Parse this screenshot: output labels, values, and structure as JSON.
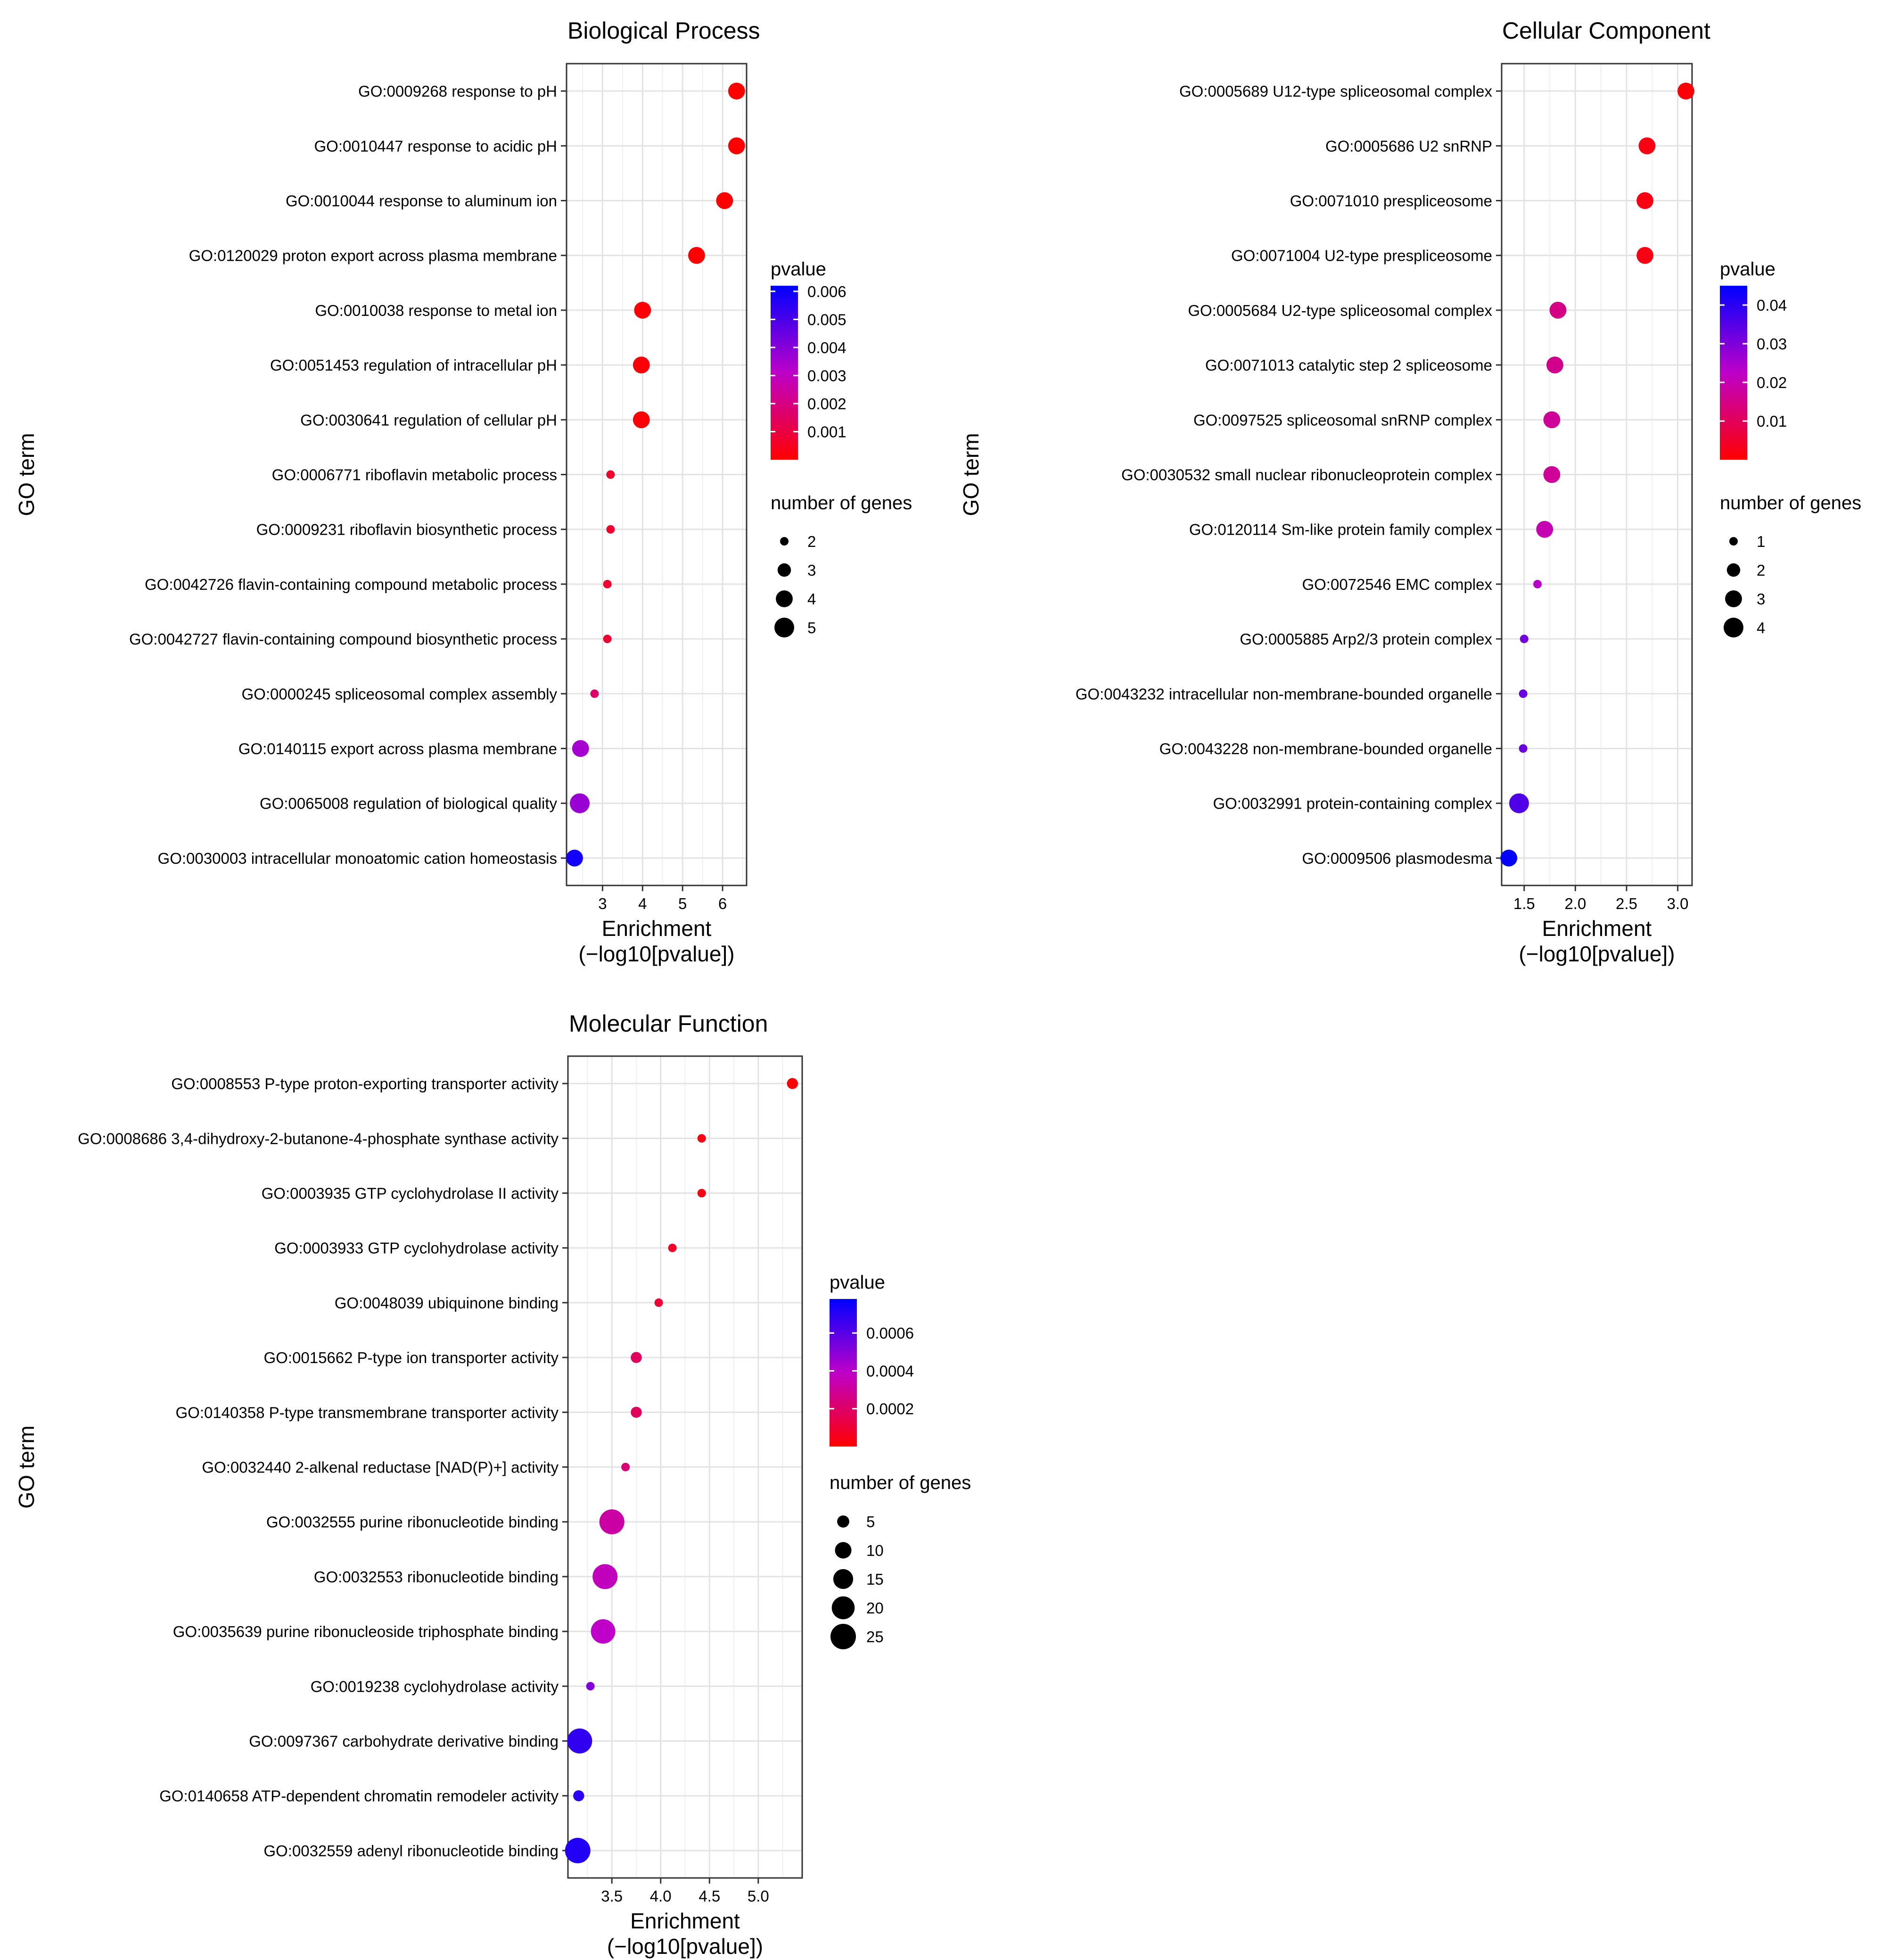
{
  "chart_data": [
    {
      "type": "scatter",
      "title": "Biological Process",
      "xlabel": "Enrichment\n(−log10[pvalue])",
      "ylabel": "GO term",
      "xlim": [
        2.1,
        6.6
      ],
      "xticks": [
        3,
        4,
        5,
        6
      ],
      "xtick_labels": [
        "3",
        "4",
        "5",
        "6"
      ],
      "grid": true,
      "legend_position": "right",
      "color_legend": {
        "title": "pvalue",
        "range": [
          0,
          0.0062
        ],
        "ticks": [
          0.006,
          0.005,
          0.004,
          0.003,
          0.002,
          0.001
        ],
        "tick_labels": [
          "0.006",
          "0.005",
          "0.004",
          "0.003",
          "0.002",
          "0.001"
        ],
        "low_color": "#ff0000",
        "high_color": "#0000ff"
      },
      "size_legend": {
        "title": "number of genes",
        "values": [
          2,
          3,
          4,
          5
        ],
        "labels": [
          "2",
          "3",
          "4",
          "5"
        ],
        "min": 2,
        "max": 5
      },
      "points": [
        {
          "term": "GO:0009268 response to pH",
          "enrichment": 6.35,
          "pvalue": 4.5e-07,
          "genes": 4
        },
        {
          "term": "GO:0010447 response to acidic pH",
          "enrichment": 6.35,
          "pvalue": 4.5e-07,
          "genes": 4
        },
        {
          "term": "GO:0010044 response to aluminum ion",
          "enrichment": 6.05,
          "pvalue": 9e-07,
          "genes": 4
        },
        {
          "term": "GO:0120029 proton export across plasma membrane",
          "enrichment": 5.35,
          "pvalue": 4.5e-06,
          "genes": 4
        },
        {
          "term": "GO:0010038 response to metal ion",
          "enrichment": 4.0,
          "pvalue": 0.0001,
          "genes": 4
        },
        {
          "term": "GO:0051453 regulation of intracellular pH",
          "enrichment": 3.97,
          "pvalue": 0.00011,
          "genes": 4
        },
        {
          "term": "GO:0030641 regulation of cellular pH",
          "enrichment": 3.97,
          "pvalue": 0.00011,
          "genes": 4
        },
        {
          "term": "GO:0006771 riboflavin metabolic process",
          "enrichment": 3.2,
          "pvalue": 0.00063,
          "genes": 2
        },
        {
          "term": "GO:0009231 riboflavin biosynthetic process",
          "enrichment": 3.2,
          "pvalue": 0.00063,
          "genes": 2
        },
        {
          "term": "GO:0042726 flavin-containing compound metabolic process",
          "enrichment": 3.12,
          "pvalue": 0.00076,
          "genes": 2
        },
        {
          "term": "GO:0042727 flavin-containing compound biosynthetic process",
          "enrichment": 3.12,
          "pvalue": 0.00076,
          "genes": 2
        },
        {
          "term": "GO:0000245 spliceosomal complex assembly",
          "enrichment": 2.8,
          "pvalue": 0.0016,
          "genes": 2
        },
        {
          "term": "GO:0140115 export across plasma membrane",
          "enrichment": 2.45,
          "pvalue": 0.0035,
          "genes": 4
        },
        {
          "term": "GO:0065008 regulation of biological quality",
          "enrichment": 2.43,
          "pvalue": 0.0037,
          "genes": 5
        },
        {
          "term": "GO:0030003 intracellular monoatomic cation homeostasis",
          "enrichment": 2.3,
          "pvalue": 0.0059,
          "genes": 4
        }
      ]
    },
    {
      "type": "scatter",
      "title": "Cellular Component",
      "xlabel": "Enrichment\n(−log10[pvalue])",
      "ylabel": "GO term",
      "xlim": [
        1.28,
        3.14
      ],
      "xticks": [
        1.5,
        2.0,
        2.5,
        3.0
      ],
      "xtick_labels": [
        "1.5",
        "2.0",
        "2.5",
        "3.0"
      ],
      "grid": true,
      "legend_position": "right",
      "color_legend": {
        "title": "pvalue",
        "range": [
          0,
          0.045
        ],
        "ticks": [
          0.04,
          0.03,
          0.02,
          0.01
        ],
        "tick_labels": [
          "0.04",
          "0.03",
          "0.02",
          "0.01"
        ],
        "low_color": "#ff0000",
        "high_color": "#0000ff"
      },
      "size_legend": {
        "title": "number of genes",
        "values": [
          1,
          2,
          3,
          4
        ],
        "labels": [
          "1",
          "2",
          "3",
          "4"
        ],
        "min": 1,
        "max": 4
      },
      "points": [
        {
          "term": "GO:0005689 U12-type spliceosomal complex",
          "enrichment": 3.08,
          "pvalue": 0.00083,
          "genes": 3
        },
        {
          "term": "GO:0005686 U2 snRNP",
          "enrichment": 2.7,
          "pvalue": 0.002,
          "genes": 3
        },
        {
          "term": "GO:0071010 prespliceosome",
          "enrichment": 2.68,
          "pvalue": 0.0021,
          "genes": 3
        },
        {
          "term": "GO:0071004 U2-type prespliceosome",
          "enrichment": 2.68,
          "pvalue": 0.0021,
          "genes": 3
        },
        {
          "term": "GO:0005684 U2-type spliceosomal complex",
          "enrichment": 1.83,
          "pvalue": 0.0148,
          "genes": 3
        },
        {
          "term": "GO:0071013 catalytic step 2 spliceosome",
          "enrichment": 1.8,
          "pvalue": 0.0158,
          "genes": 3
        },
        {
          "term": "GO:0097525 spliceosomal snRNP complex",
          "enrichment": 1.77,
          "pvalue": 0.017,
          "genes": 3
        },
        {
          "term": "GO:0030532 small nuclear ribonucleoprotein complex",
          "enrichment": 1.77,
          "pvalue": 0.017,
          "genes": 3
        },
        {
          "term": "GO:0120114 Sm-like protein family complex",
          "enrichment": 1.7,
          "pvalue": 0.02,
          "genes": 3
        },
        {
          "term": "GO:0072546 EMC complex",
          "enrichment": 1.63,
          "pvalue": 0.0234,
          "genes": 1
        },
        {
          "term": "GO:0005885 Arp2/3 protein complex",
          "enrichment": 1.5,
          "pvalue": 0.0316,
          "genes": 1
        },
        {
          "term": "GO:0043232 intracellular non-membrane-bounded organelle",
          "enrichment": 1.49,
          "pvalue": 0.0324,
          "genes": 1
        },
        {
          "term": "GO:0043228 non-membrane-bounded organelle",
          "enrichment": 1.49,
          "pvalue": 0.0324,
          "genes": 1
        },
        {
          "term": "GO:0032991 protein-containing complex",
          "enrichment": 1.45,
          "pvalue": 0.0355,
          "genes": 4
        },
        {
          "term": "GO:0009506 plasmodesma",
          "enrichment": 1.35,
          "pvalue": 0.0447,
          "genes": 3
        }
      ]
    },
    {
      "type": "scatter",
      "title": "Molecular Function",
      "xlabel": "Enrichment\n(−log10[pvalue])",
      "ylabel": "GO term",
      "xlim": [
        3.05,
        5.45
      ],
      "xticks": [
        3.5,
        4.0,
        4.5,
        5.0
      ],
      "xtick_labels": [
        "3.5",
        "4.0",
        "4.5",
        "5.0"
      ],
      "grid": true,
      "legend_position": "right",
      "color_legend": {
        "title": "pvalue",
        "range": [
          0,
          0.00078
        ],
        "ticks": [
          0.0006,
          0.0004,
          0.0002
        ],
        "tick_labels": [
          "0.0006",
          "0.0004",
          "0.0002"
        ],
        "low_color": "#ff0000",
        "high_color": "#0000ff"
      },
      "size_legend": {
        "title": "number of genes",
        "values": [
          5,
          10,
          15,
          20,
          25
        ],
        "labels": [
          "5",
          "10",
          "15",
          "20",
          "25"
        ],
        "min": 2,
        "max": 25
      },
      "points": [
        {
          "term": "GO:0008553 P-type proton-exporting transporter activity",
          "enrichment": 5.35,
          "pvalue": 4.5e-06,
          "genes": 4
        },
        {
          "term": "GO:0008686 3,4-dihydroxy-2-butanone-4-phosphate synthase activity",
          "enrichment": 4.42,
          "pvalue": 3.8e-05,
          "genes": 2
        },
        {
          "term": "GO:0003935 GTP cyclohydrolase II activity",
          "enrichment": 4.42,
          "pvalue": 3.8e-05,
          "genes": 2
        },
        {
          "term": "GO:0003933 GTP cyclohydrolase activity",
          "enrichment": 4.12,
          "pvalue": 7.6e-05,
          "genes": 2
        },
        {
          "term": "GO:0048039 ubiquinone binding",
          "enrichment": 3.98,
          "pvalue": 0.000105,
          "genes": 2
        },
        {
          "term": "GO:0015662 P-type ion transporter activity",
          "enrichment": 3.75,
          "pvalue": 0.00018,
          "genes": 4
        },
        {
          "term": "GO:0140358 P-type transmembrane transporter activity",
          "enrichment": 3.75,
          "pvalue": 0.00018,
          "genes": 4
        },
        {
          "term": "GO:0032440 2-alkenal reductase [NAD(P)+] activity",
          "enrichment": 3.64,
          "pvalue": 0.00023,
          "genes": 2
        },
        {
          "term": "GO:0032555 purine ribonucleotide binding",
          "enrichment": 3.5,
          "pvalue": 0.00032,
          "genes": 24
        },
        {
          "term": "GO:0032553 ribonucleotide binding",
          "enrichment": 3.43,
          "pvalue": 0.00037,
          "genes": 24
        },
        {
          "term": "GO:0035639 purine ribonucleoside triphosphate binding",
          "enrichment": 3.41,
          "pvalue": 0.00039,
          "genes": 23
        },
        {
          "term": "GO:0019238 cyclohydrolase activity",
          "enrichment": 3.28,
          "pvalue": 0.00052,
          "genes": 2
        },
        {
          "term": "GO:0097367 carbohydrate derivative binding",
          "enrichment": 3.17,
          "pvalue": 0.00068,
          "genes": 24
        },
        {
          "term": "GO:0140658 ATP-dependent chromatin remodeler activity",
          "enrichment": 3.16,
          "pvalue": 0.00069,
          "genes": 4
        },
        {
          "term": "GO:0032559 adenyl ribonucleotide binding",
          "enrichment": 3.15,
          "pvalue": 0.00071,
          "genes": 25
        }
      ]
    }
  ]
}
